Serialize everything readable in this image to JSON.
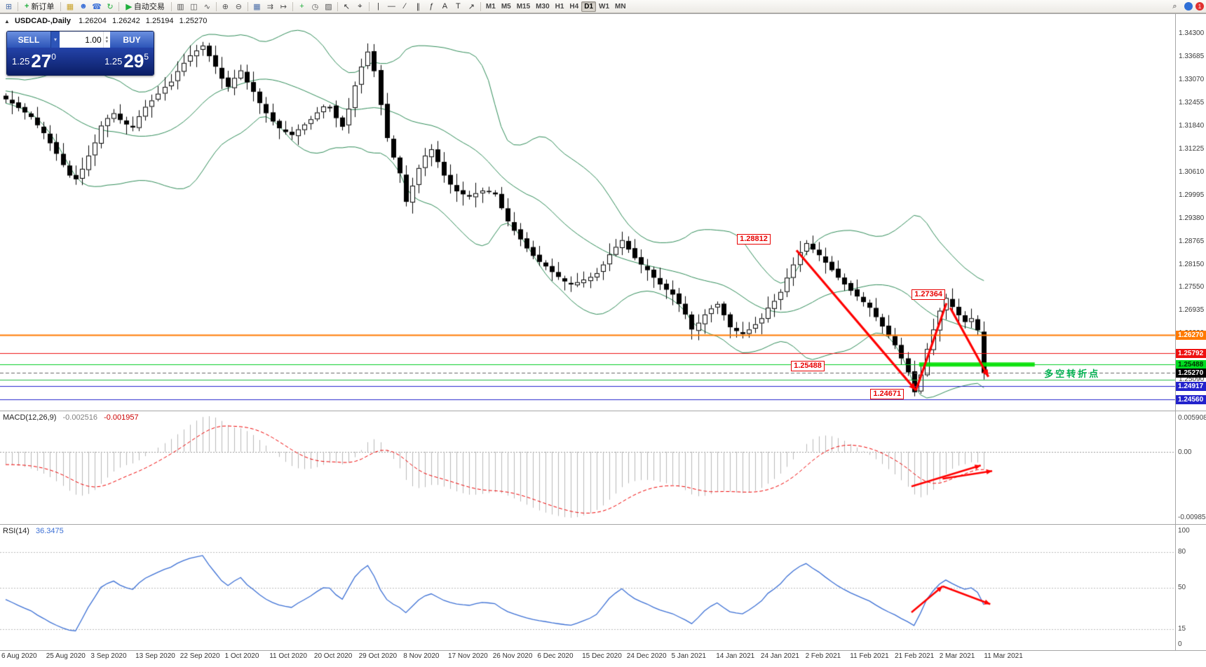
{
  "toolbar": {
    "left_items": [
      {
        "type": "icon",
        "name": "terminal-icon",
        "glyph": "⊞",
        "color": "#4a6da8"
      },
      {
        "type": "sep"
      },
      {
        "type": "button",
        "name": "new-order-button",
        "glyph": "+",
        "glyph_color": "#1faf3c",
        "label": "新订单"
      },
      {
        "type": "sep"
      },
      {
        "type": "icon",
        "name": "chart-window-icon",
        "glyph": "▦",
        "color": "#c9a227"
      },
      {
        "type": "icon",
        "name": "profile-icon",
        "glyph": "☻",
        "color": "#3a6fd8"
      },
      {
        "type": "icon",
        "name": "phone-trading-icon",
        "glyph": "☎",
        "color": "#3a6fd8"
      },
      {
        "type": "icon",
        "name": "refresh-icon",
        "glyph": "↻",
        "color": "#1faf3c"
      },
      {
        "type": "sep"
      },
      {
        "type": "button",
        "name": "autotrading-button",
        "glyph": "▶",
        "glyph_color": "#1faf3c",
        "label": "自动交易"
      },
      {
        "type": "sep"
      },
      {
        "type": "icon",
        "name": "bar-chart-icon",
        "glyph": "▥",
        "color": "#555"
      },
      {
        "type": "icon",
        "name": "candlestick-chart-icon",
        "glyph": "◫",
        "color": "#555"
      },
      {
        "type": "icon",
        "name": "line-chart-icon",
        "glyph": "∿",
        "color": "#555"
      },
      {
        "type": "sep"
      },
      {
        "type": "icon",
        "name": "zoom-in-icon",
        "glyph": "⊕",
        "color": "#555"
      },
      {
        "type": "icon",
        "name": "zoom-out-icon",
        "glyph": "⊖",
        "color": "#555"
      },
      {
        "type": "sep"
      },
      {
        "type": "icon",
        "name": "tile-windows-icon",
        "glyph": "▦",
        "color": "#4a6da8"
      },
      {
        "type": "icon",
        "name": "auto-scroll-icon",
        "glyph": "⇉",
        "color": "#555"
      },
      {
        "type": "icon",
        "name": "chart-shift-icon",
        "glyph": "↦",
        "color": "#555"
      },
      {
        "type": "sep"
      },
      {
        "type": "icon",
        "name": "indicators-icon",
        "glyph": "+",
        "color": "#1faf3c"
      },
      {
        "type": "icon",
        "name": "periods-icon",
        "glyph": "◷",
        "color": "#555"
      },
      {
        "type": "icon",
        "name": "templates-icon",
        "glyph": "▨",
        "color": "#555"
      },
      {
        "type": "sep"
      },
      {
        "type": "icon",
        "name": "cursor-icon",
        "glyph": "↖",
        "color": "#333"
      },
      {
        "type": "icon",
        "name": "crosshair-icon",
        "glyph": "⌖",
        "color": "#333"
      },
      {
        "type": "sep"
      },
      {
        "type": "icon",
        "name": "vertical-line-icon",
        "glyph": "|",
        "color": "#333"
      },
      {
        "type": "icon",
        "name": "horizontal-line-icon",
        "glyph": "—",
        "color": "#333"
      },
      {
        "type": "icon",
        "name": "trendline-icon",
        "glyph": "∕",
        "color": "#333"
      },
      {
        "type": "icon",
        "name": "channel-icon",
        "glyph": "∥",
        "color": "#333"
      },
      {
        "type": "icon",
        "name": "fibonacci-icon",
        "glyph": "ƒ",
        "color": "#333"
      },
      {
        "type": "icon",
        "name": "text-icon",
        "glyph": "A",
        "color": "#333"
      },
      {
        "type": "icon",
        "name": "label-icon",
        "glyph": "T",
        "color": "#333"
      },
      {
        "type": "icon",
        "name": "shapes-icon",
        "glyph": "↗",
        "color": "#333"
      },
      {
        "type": "sep"
      }
    ],
    "timeframes": [
      {
        "label": "M1"
      },
      {
        "label": "M5"
      },
      {
        "label": "M15"
      },
      {
        "label": "M30"
      },
      {
        "label": "H1"
      },
      {
        "label": "H4"
      },
      {
        "label": "D1",
        "active": true
      },
      {
        "label": "W1"
      },
      {
        "label": "MN"
      }
    ],
    "right_items": [
      {
        "type": "icon",
        "name": "search-icon",
        "glyph": "⌕",
        "color": "#333"
      },
      {
        "type": "dot",
        "name": "community-icon",
        "color": "#2f6fd6",
        "label": ""
      },
      {
        "type": "dot",
        "name": "notification-badge",
        "color": "#e03030",
        "label": "1"
      }
    ]
  },
  "chart_header": {
    "collapse_icon": "▲",
    "symbol_period": "USDCAD-,Daily",
    "ohlc": {
      "open": "1.26204",
      "high": "1.26242",
      "low": "1.25194",
      "close": "1.25270"
    }
  },
  "trade_panel": {
    "sell_label": "SELL",
    "buy_label": "BUY",
    "volume": "1.00",
    "sell_price": {
      "small": "1.25",
      "big": "27",
      "sup": "0"
    },
    "buy_price": {
      "small": "1.25",
      "big": "29",
      "sup": "5"
    }
  },
  "icons": {
    "dropdown": "▾",
    "up": "▲",
    "down": "▼"
  },
  "chart_data": {
    "type": "candlestick",
    "symbol": "USDCAD-",
    "timeframe": "Daily",
    "closes": [
      1.3255,
      1.3244,
      1.3232,
      1.322,
      1.3208,
      1.3186,
      1.3165,
      1.3138,
      1.311,
      1.308,
      1.3052,
      1.3042,
      1.307,
      1.3105,
      1.314,
      1.3185,
      1.3205,
      1.3218,
      1.32,
      1.3188,
      1.318,
      1.321,
      1.3235,
      1.3252,
      1.327,
      1.3288,
      1.3302,
      1.333,
      1.3352,
      1.3372,
      1.3385,
      1.3398,
      1.337,
      1.3342,
      1.331,
      1.3288,
      1.3312,
      1.3332,
      1.33,
      1.3275,
      1.3245,
      1.3218,
      1.3196,
      1.3178,
      1.3168,
      1.316,
      1.3175,
      1.3188,
      1.3202,
      1.322,
      1.3236,
      1.3235,
      1.3205,
      1.3182,
      1.323,
      1.3292,
      1.3342,
      1.3382,
      1.333,
      1.324,
      1.3152,
      1.31,
      1.3058,
      1.2982,
      1.3025,
      1.3072,
      1.3105,
      1.3122,
      1.3088,
      1.3052,
      1.3028,
      1.301,
      1.3002,
      1.2996,
      1.3005,
      1.3012,
      1.3008,
      1.3002,
      1.2965,
      1.293,
      1.2905,
      1.2882,
      1.2858,
      1.2838,
      1.2822,
      1.281,
      1.2795,
      1.2782,
      1.277,
      1.2762,
      1.2768,
      1.2775,
      1.2782,
      1.2792,
      1.2815,
      1.2842,
      1.2862,
      1.288,
      1.2855,
      1.2832,
      1.2815,
      1.28,
      1.278,
      1.2762,
      1.2748,
      1.2735,
      1.271,
      1.2682,
      1.2642,
      1.266,
      1.2682,
      1.2698,
      1.271,
      1.268,
      1.2648,
      1.2638,
      1.263,
      1.2642,
      1.2656,
      1.2672,
      1.27,
      1.2718,
      1.2742,
      1.278,
      1.2815,
      1.2848,
      1.2872,
      1.2855,
      1.284,
      1.282,
      1.28,
      1.278,
      1.2762,
      1.2745,
      1.273,
      1.2715,
      1.27,
      1.2675,
      1.265,
      1.2625,
      1.26,
      1.2565,
      1.2528,
      1.2475,
      1.2522,
      1.259,
      1.2642,
      1.2692,
      1.2726,
      1.2702,
      1.268,
      1.2662,
      1.2672,
      1.264,
      1.2527
    ],
    "pre_pad": {
      "count": 40,
      "start": 1.336
    },
    "y_axis": {
      "labels": [
        "1.34300",
        "1.33685",
        "1.33070",
        "1.32455",
        "1.31840",
        "1.31225",
        "1.30610",
        "1.29995",
        "1.29380",
        "1.28765",
        "1.28150",
        "1.27550",
        "1.26935",
        "1.26320",
        "1.25705",
        "1.25090",
        "1.24475"
      ]
    },
    "x_axis": {
      "dates": [
        "6 Aug 2020",
        "25 Aug 2020",
        "3 Sep 2020",
        "13 Sep 2020",
        "22 Sep 2020",
        "1 Oct 2020",
        "11 Oct 2020",
        "20 Oct 2020",
        "29 Oct 2020",
        "8 Nov 2020",
        "17 Nov 2020",
        "26 Nov 2020",
        "6 Dec 2020",
        "15 Dec 2020",
        "24 Dec 2020",
        "5 Jan 2021",
        "14 Jan 2021",
        "24 Jan 2021",
        "2 Feb 2021",
        "11 Feb 2021",
        "21 Feb 2021",
        "2 Mar 2021",
        "11 Mar 2021"
      ]
    },
    "hlines": [
      {
        "price": 1.2627,
        "color": "#ff7a00",
        "width": 2,
        "tag": "1.26270",
        "tag_bg": "#ff7a00",
        "tag_color": "#ffffff"
      },
      {
        "price": 1.25792,
        "color": "#ee1111",
        "width": 1,
        "tag": "1.25792",
        "tag_bg": "#ee1111",
        "tag_color": "#ffffff"
      },
      {
        "price": 1.25488,
        "color": "#00cc22",
        "width": 1,
        "tag": "1.25488",
        "tag_bg": "#00dd22",
        "tag_color": "#013301"
      },
      {
        "price": 1.2508,
        "color": "#22bb44",
        "width": 1
      },
      {
        "price": 1.24917,
        "color": "#2222cc",
        "width": 1,
        "tag": "1.24917",
        "tag_bg": "#2222cc",
        "tag_color": "#ffffff"
      },
      {
        "price": 1.2456,
        "color": "#2222cc",
        "width": 1,
        "tag": "1.24560",
        "tag_bg": "#2222cc",
        "tag_color": "#ffffff"
      }
    ],
    "current_price": {
      "text": "1.25270",
      "price": 1.2527,
      "tag_bg": "#000000",
      "tag_color": "#ffffff",
      "line_color": "#666666"
    },
    "indicators": {
      "bollinger": {
        "period": 20,
        "deviation": 2,
        "color": "#2e8b57"
      },
      "macd": {
        "label": "MACD(12,26,9)",
        "value_main": "-0.002516",
        "value_signal": "-0.001957",
        "axis_max": "0.005908",
        "axis_zero": "0.00",
        "axis_min": "-0.009851",
        "hist_color": "#b8b8b8",
        "signal_color": "#ee0000"
      },
      "rsi": {
        "label": "RSI(14)",
        "value": "36.3475",
        "axis_top": "100",
        "axis_bottom": "0",
        "levels": [
          80,
          50,
          15
        ],
        "color": "#3b6fd4"
      }
    },
    "annotations": {
      "arrow_color": "#ff0000",
      "price_boxes": [
        {
          "text": "1.28812",
          "bar": 118,
          "price": 1.2883
        },
        {
          "text": "1.27364",
          "bar": 145.5,
          "price": 1.2736
        },
        {
          "text": "1.25488",
          "bar": 126.5,
          "price": 1.2546
        },
        {
          "text": "1.24671",
          "bar": 139,
          "price": 1.247
        }
      ],
      "arrows": [
        {
          "from": [
            124.5,
            1.2853
          ],
          "to": [
            143.3,
            1.248
          ],
          "head": true
        },
        {
          "from": [
            143.3,
            1.248
          ],
          "to": [
            148.1,
            1.2712
          ],
          "head": false
        },
        {
          "from": [
            148.7,
            1.27
          ],
          "to": [
            154.7,
            1.2516
          ],
          "head": true
        }
      ],
      "macd_arrows": [
        {
          "from": [
            142.6,
            0.67
          ],
          "to": [
            153.5,
            0.48
          ],
          "head": true
        },
        {
          "from": [
            147.5,
            0.6
          ],
          "to": [
            155.3,
            0.53
          ],
          "head": true
        }
      ],
      "rsi_arrows": [
        {
          "from": [
            142.6,
            29
          ],
          "to": [
            147.5,
            51
          ],
          "head": true
        },
        {
          "from": [
            147.5,
            51
          ],
          "to": [
            155,
            36
          ],
          "head": true
        }
      ],
      "highlight": {
        "price": 1.25488,
        "bar_start": 143.8,
        "bar_end": 162,
        "color": "#00e000"
      },
      "note": {
        "text": "多空转折点",
        "bar": 163.5,
        "price": 1.2528,
        "color": "#00b050"
      }
    }
  }
}
